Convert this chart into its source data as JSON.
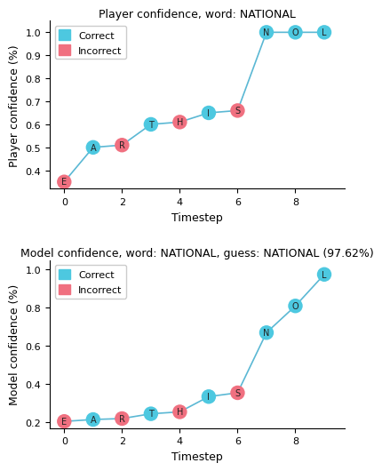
{
  "title1": "Player confidence, word: NATIONAL",
  "title2": "Model confidence, word: NATIONAL, guess: NATIONAL (97.62%)",
  "xlabel": "Timestep",
  "ylabel1": "Player confidence (%)",
  "ylabel2": "Model confidence (%)",
  "player": {
    "timesteps": [
      0,
      1,
      2,
      3,
      4,
      5,
      6,
      7,
      8,
      9
    ],
    "values": [
      0.35,
      0.5,
      0.51,
      0.6,
      0.61,
      0.65,
      0.66,
      1.0,
      1.0,
      1.0
    ],
    "letters": [
      "E",
      "A",
      "R",
      "T",
      "H",
      "I",
      "S",
      "N",
      "O",
      "L"
    ],
    "correct": [
      false,
      true,
      false,
      true,
      false,
      true,
      false,
      true,
      true,
      true
    ]
  },
  "model": {
    "timesteps": [
      0,
      1,
      2,
      3,
      4,
      5,
      6,
      7,
      8,
      9
    ],
    "values": [
      0.205,
      0.215,
      0.22,
      0.245,
      0.255,
      0.335,
      0.355,
      0.67,
      0.81,
      0.975
    ],
    "letters": [
      "E",
      "A",
      "R",
      "T",
      "H",
      "I",
      "S",
      "N",
      "O",
      "L"
    ],
    "correct": [
      false,
      true,
      false,
      true,
      false,
      true,
      false,
      true,
      true,
      true
    ]
  },
  "color_correct": "#4DC8E0",
  "color_incorrect": "#F07080",
  "line_color": "#5BB8D4",
  "bg_color": "#FFFFFF",
  "ylim1": [
    0.32,
    1.05
  ],
  "ylim2": [
    0.17,
    1.05
  ],
  "xlim": [
    -0.5,
    9.7
  ],
  "marker_size": 140,
  "legend_fontsize": 8,
  "title_fontsize": 9,
  "axis_fontsize": 9,
  "tick_fontsize": 8
}
